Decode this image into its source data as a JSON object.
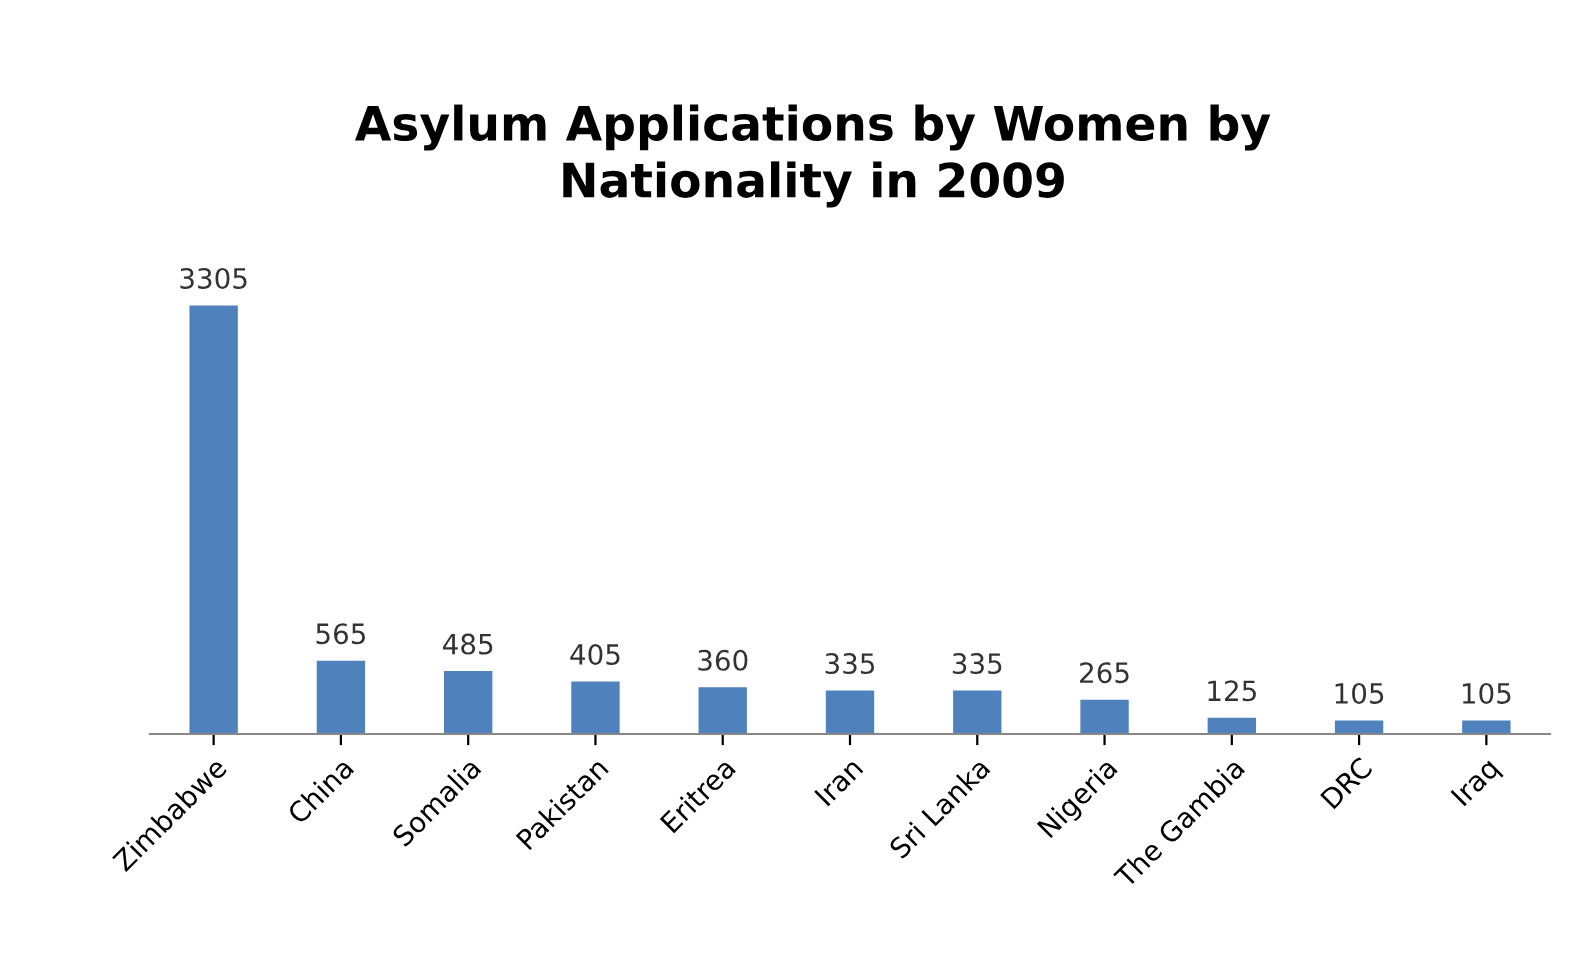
{
  "chart_data": {
    "type": "bar",
    "title": "Asylum Applications by Women by\nNationality in 2009",
    "categories": [
      "Zimbabwe",
      "China",
      "Somalia",
      "Pakistan",
      "Eritrea",
      "Iran",
      "Sri Lanka",
      "Nigeria",
      "The Gambia",
      "DRC",
      "Iraq"
    ],
    "values": [
      3305,
      565,
      485,
      405,
      360,
      335,
      335,
      265,
      125,
      105,
      105
    ],
    "color": "#4f81bd",
    "data_labels": true
  }
}
